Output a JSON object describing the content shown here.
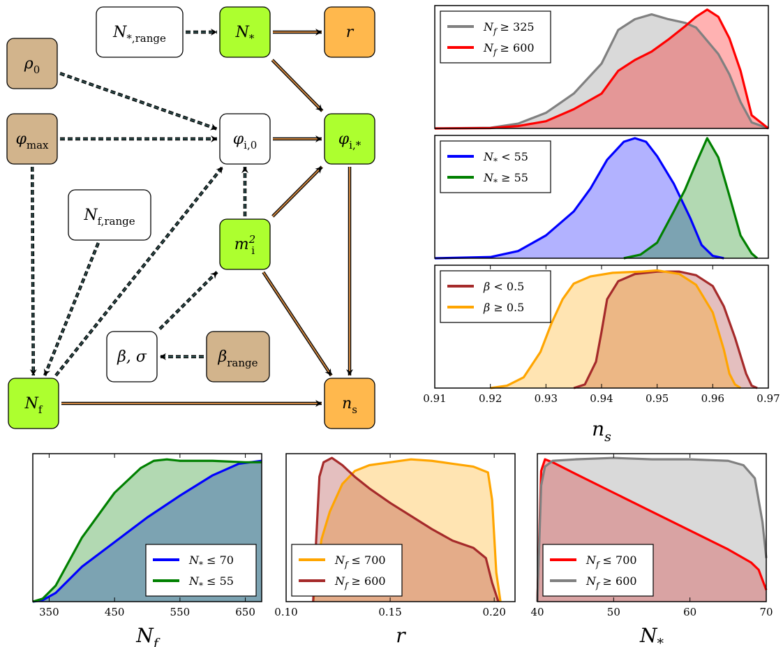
{
  "diagram": {
    "nodes": [
      {
        "id": "n_star_range",
        "kind": "white",
        "label": "N",
        "sub": "*,range"
      },
      {
        "id": "n_star",
        "kind": "green",
        "label": "N",
        "sub": "*"
      },
      {
        "id": "r",
        "kind": "orange",
        "label": "r",
        "sub": ""
      },
      {
        "id": "rho0",
        "kind": "tan",
        "label": "ρ",
        "sub": "0"
      },
      {
        "id": "phimax",
        "kind": "tan",
        "label": "φ",
        "sub": "max"
      },
      {
        "id": "phi_i0",
        "kind": "white",
        "label": "φ",
        "sub": "i,0"
      },
      {
        "id": "phi_istar",
        "kind": "green",
        "label": "φ",
        "sub": "i,*"
      },
      {
        "id": "nf_range",
        "kind": "white",
        "label": "N",
        "sub": "f,range"
      },
      {
        "id": "mi2",
        "kind": "green",
        "label": "m",
        "sub": "i",
        "sup": "2"
      },
      {
        "id": "beta_sigma",
        "kind": "white",
        "label": "β, σ",
        "sub": ""
      },
      {
        "id": "beta_range",
        "kind": "tan",
        "label": "β",
        "sub": "range"
      },
      {
        "id": "nf",
        "kind": "green",
        "label": "N",
        "sub": "f"
      },
      {
        "id": "ns",
        "kind": "orange",
        "label": "n",
        "sub": "s"
      }
    ],
    "edges": [
      {
        "from": "n_star_range",
        "to": "n_star",
        "style": "dashed"
      },
      {
        "from": "n_star",
        "to": "r",
        "style": "solid"
      },
      {
        "from": "n_star",
        "to": "phi_istar",
        "style": "solid"
      },
      {
        "from": "rho0",
        "to": "phi_i0",
        "style": "dashed"
      },
      {
        "from": "phimax",
        "to": "phi_i0",
        "style": "dashed"
      },
      {
        "from": "phimax",
        "to": "nf",
        "style": "dashed"
      },
      {
        "from": "phi_i0",
        "to": "phi_istar",
        "style": "solid"
      },
      {
        "from": "phi_istar",
        "to": "ns",
        "style": "solid"
      },
      {
        "from": "mi2",
        "to": "phi_i0",
        "style": "dashed"
      },
      {
        "from": "mi2",
        "to": "phi_istar",
        "style": "solid"
      },
      {
        "from": "mi2",
        "to": "ns",
        "style": "solid"
      },
      {
        "from": "nf_range",
        "to": "nf",
        "style": "dashed"
      },
      {
        "from": "nf",
        "to": "phi_i0",
        "style": "dashed"
      },
      {
        "from": "beta_sigma",
        "to": "mi2",
        "style": "dashed"
      },
      {
        "from": "beta_range",
        "to": "beta_sigma",
        "style": "dashed"
      },
      {
        "from": "nf",
        "to": "ns",
        "style": "solid"
      }
    ],
    "colors": {
      "white": "#ffffff",
      "green": "#adff2f",
      "orange": "#ffb84d",
      "tan": "#d2b48c",
      "dashed_edge": "#2f4f4f",
      "solid_edge": "#cd853f"
    }
  },
  "chart_data": [
    {
      "id": "ns_nf",
      "type": "area",
      "xlim": [
        0.91,
        0.97
      ],
      "xticks": [],
      "xlabel": "",
      "legend_position": "top-left",
      "series": [
        {
          "name": "N_f ≥ 325",
          "color": "#808080",
          "x": [
            0.91,
            0.92,
            0.925,
            0.93,
            0.935,
            0.94,
            0.943,
            0.946,
            0.949,
            0.952,
            0.955,
            0.957,
            0.959,
            0.961,
            0.963,
            0.965,
            0.967,
            0.97
          ],
          "y": [
            0,
            0.005,
            0.04,
            0.13,
            0.29,
            0.54,
            0.82,
            0.91,
            0.95,
            0.91,
            0.88,
            0.84,
            0.73,
            0.62,
            0.45,
            0.22,
            0.05,
            0
          ]
        },
        {
          "name": "N_f ≥ 600",
          "color": "#ff0000",
          "x": [
            0.91,
            0.92,
            0.925,
            0.93,
            0.935,
            0.94,
            0.943,
            0.946,
            0.949,
            0.952,
            0.955,
            0.957,
            0.959,
            0.961,
            0.963,
            0.965,
            0.967,
            0.97
          ],
          "y": [
            0,
            0.003,
            0.02,
            0.06,
            0.16,
            0.29,
            0.48,
            0.57,
            0.64,
            0.74,
            0.85,
            0.93,
            0.99,
            0.93,
            0.75,
            0.48,
            0.11,
            0
          ]
        }
      ]
    },
    {
      "id": "ns_nstar",
      "type": "area",
      "xlim": [
        0.91,
        0.97
      ],
      "xticks": [],
      "xlabel": "",
      "legend_position": "top-left",
      "series": [
        {
          "name": "N_* < 55",
          "color": "#0000ff",
          "x": [
            0.91,
            0.92,
            0.925,
            0.93,
            0.935,
            0.938,
            0.941,
            0.944,
            0.946,
            0.948,
            0.95,
            0.953,
            0.956,
            0.958,
            0.96,
            0.962
          ],
          "y": [
            0,
            0.01,
            0.06,
            0.19,
            0.39,
            0.58,
            0.82,
            0.97,
            1.0,
            0.97,
            0.85,
            0.62,
            0.33,
            0.11,
            0.02,
            0
          ]
        },
        {
          "name": "N_* ≥ 55",
          "color": "#008000",
          "x": [
            0.944,
            0.947,
            0.95,
            0.953,
            0.955,
            0.957,
            0.959,
            0.961,
            0.963,
            0.965,
            0.967,
            0.968
          ],
          "y": [
            0,
            0.03,
            0.13,
            0.39,
            0.57,
            0.79,
            1.0,
            0.84,
            0.52,
            0.19,
            0.04,
            0
          ]
        }
      ]
    },
    {
      "id": "ns_beta",
      "type": "area",
      "xlim": [
        0.91,
        0.97
      ],
      "xticks": [
        0.91,
        0.92,
        0.93,
        0.94,
        0.95,
        0.96,
        0.97
      ],
      "xlabel": "n_s",
      "legend_position": "top-left",
      "series": [
        {
          "name": "β < 0.5",
          "color": "#a52a2a",
          "x": [
            0.935,
            0.937,
            0.939,
            0.94,
            0.941,
            0.943,
            0.946,
            0.95,
            0.954,
            0.957,
            0.96,
            0.962,
            0.964,
            0.966,
            0.967,
            0.968
          ],
          "y": [
            0,
            0.03,
            0.22,
            0.47,
            0.74,
            0.89,
            0.95,
            0.97,
            0.97,
            0.94,
            0.85,
            0.68,
            0.42,
            0.12,
            0.02,
            0
          ]
        },
        {
          "name": "β ≥ 0.5",
          "color": "#ffa500",
          "x": [
            0.92,
            0.923,
            0.926,
            0.929,
            0.931,
            0.933,
            0.935,
            0.938,
            0.942,
            0.947,
            0.95,
            0.954,
            0.957,
            0.96,
            0.962,
            0.963,
            0.964,
            0.965
          ],
          "y": [
            0,
            0.02,
            0.09,
            0.3,
            0.54,
            0.74,
            0.87,
            0.93,
            0.96,
            0.97,
            0.98,
            0.95,
            0.86,
            0.63,
            0.32,
            0.12,
            0.03,
            0
          ]
        }
      ]
    },
    {
      "id": "nf_dist",
      "type": "area",
      "xlim": [
        325,
        675
      ],
      "xticks": [
        350,
        450,
        550,
        650
      ],
      "xlabel": "N_f",
      "legend_position": "bottom-right",
      "series": [
        {
          "name": "N_* ≤ 70",
          "color": "#0000ff",
          "x": [
            325,
            340,
            360,
            400,
            450,
            500,
            550,
            600,
            640,
            675
          ],
          "y": [
            0,
            0.01,
            0.06,
            0.24,
            0.41,
            0.58,
            0.73,
            0.87,
            0.95,
            0.97
          ]
        },
        {
          "name": "N_* ≤ 55",
          "color": "#008000",
          "x": [
            325,
            340,
            360,
            400,
            450,
            490,
            510,
            530,
            550,
            600,
            650,
            675
          ],
          "y": [
            0,
            0.02,
            0.11,
            0.44,
            0.75,
            0.92,
            0.97,
            0.98,
            0.97,
            0.97,
            0.96,
            0.96
          ]
        }
      ]
    },
    {
      "id": "r_dist",
      "type": "area",
      "xlim": [
        0.1,
        0.21
      ],
      "xticks": [
        0.1,
        0.15,
        0.2
      ],
      "xlabel": "r",
      "legend_position": "bottom-left",
      "series": [
        {
          "name": "N_f ≤ 700",
          "color": "#ffa500",
          "x": [
            0.113,
            0.115,
            0.117,
            0.121,
            0.127,
            0.133,
            0.14,
            0.15,
            0.16,
            0.17,
            0.18,
            0.19,
            0.197,
            0.199,
            0.201,
            0.203
          ],
          "y": [
            0,
            0.2,
            0.43,
            0.62,
            0.81,
            0.9,
            0.94,
            0.96,
            0.98,
            0.97,
            0.95,
            0.93,
            0.89,
            0.7,
            0.2,
            0
          ]
        },
        {
          "name": "N_f ≥ 600",
          "color": "#a52a2a",
          "x": [
            0.113,
            0.114,
            0.116,
            0.118,
            0.122,
            0.127,
            0.133,
            0.14,
            0.15,
            0.16,
            0.17,
            0.18,
            0.19,
            0.196,
            0.199,
            0.202
          ],
          "y": [
            0,
            0.3,
            0.86,
            0.96,
            0.99,
            0.94,
            0.86,
            0.78,
            0.68,
            0.59,
            0.5,
            0.42,
            0.37,
            0.3,
            0.13,
            0
          ]
        }
      ]
    },
    {
      "id": "nstar_dist",
      "type": "area",
      "xlim": [
        40,
        70
      ],
      "xticks": [
        40,
        50,
        60,
        70
      ],
      "xlabel": "N_*",
      "legend_position": "bottom-left",
      "series": [
        {
          "name": "N_f ≤ 700",
          "color": "#ff0000",
          "x": [
            40,
            40.5,
            41,
            42,
            45,
            50,
            55,
            60,
            65,
            68,
            69,
            69.5,
            70
          ],
          "y": [
            0,
            0.9,
            0.98,
            0.96,
            0.88,
            0.75,
            0.62,
            0.49,
            0.36,
            0.27,
            0.22,
            0.15,
            0.08
          ]
        },
        {
          "name": "N_f ≥ 600",
          "color": "#808080",
          "x": [
            40,
            40.5,
            41,
            42,
            45,
            50,
            55,
            60,
            65,
            67,
            68.5,
            69.5,
            70
          ],
          "y": [
            0,
            0.8,
            0.93,
            0.97,
            0.98,
            0.99,
            0.98,
            0.98,
            0.97,
            0.94,
            0.85,
            0.55,
            0.3
          ]
        }
      ]
    }
  ]
}
